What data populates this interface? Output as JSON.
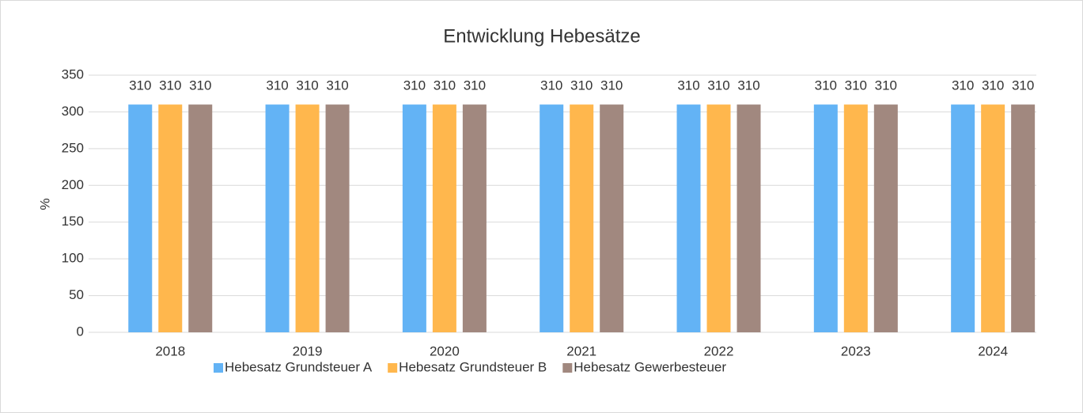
{
  "chart_data": {
    "type": "bar",
    "title": "Entwicklung Hebesätze",
    "y_label": "%",
    "categories": [
      "2018",
      "2019",
      "2020",
      "2021",
      "2022",
      "2023",
      "2024"
    ],
    "series": [
      {
        "name": "Hebesatz Grundsteuer A",
        "color": "#63b3f5",
        "values": [
          310,
          310,
          310,
          310,
          310,
          310,
          310
        ]
      },
      {
        "name": "Hebesatz Grundsteuer B",
        "color": "#ffb74d",
        "values": [
          310,
          310,
          310,
          310,
          310,
          310,
          310
        ]
      },
      {
        "name": "Hebesatz Gewerbesteuer",
        "color": "#a1887f",
        "values": [
          310,
          310,
          310,
          310,
          310,
          310,
          310
        ]
      }
    ],
    "ylim": [
      0,
      350
    ],
    "yticks": [
      0,
      50,
      100,
      150,
      200,
      250,
      300,
      350
    ],
    "grid": true,
    "legend": "bottom"
  }
}
